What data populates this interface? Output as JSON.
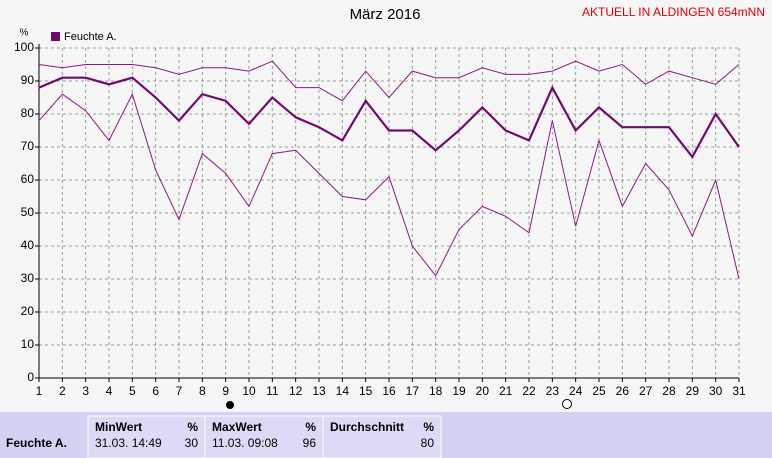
{
  "chart_data": {
    "type": "line",
    "title": "März 2016",
    "annotation": "AKTUELL IN ALDINGEN 654mNN",
    "y_label": "%",
    "x": [
      1,
      2,
      3,
      4,
      5,
      6,
      7,
      8,
      9,
      10,
      11,
      12,
      13,
      14,
      15,
      16,
      17,
      18,
      19,
      20,
      21,
      22,
      23,
      24,
      25,
      26,
      27,
      28,
      29,
      30,
      31
    ],
    "xlim": [
      1,
      31
    ],
    "ylim": [
      0,
      100
    ],
    "yticks": [
      0,
      10,
      20,
      30,
      40,
      50,
      60,
      70,
      80,
      90,
      100
    ],
    "grid": true,
    "series": [
      {
        "color": "#8a1a84",
        "width": 1,
        "values": [
          95,
          94,
          95,
          95,
          95,
          94,
          92,
          94,
          94,
          93,
          96,
          88,
          88,
          84,
          93,
          85,
          93,
          91,
          91,
          94,
          92,
          92,
          93,
          96,
          93,
          95,
          89,
          93,
          91,
          89,
          95
        ]
      },
      {
        "name": "Feuchte A.",
        "color": "#720a6c",
        "width": 2.2,
        "values": [
          88,
          91,
          91,
          89,
          91,
          85,
          78,
          86,
          84,
          77,
          85,
          79,
          76,
          72,
          84,
          75,
          75,
          69,
          75,
          82,
          75,
          72,
          88,
          75,
          82,
          76,
          76,
          76,
          67,
          80,
          70
        ]
      },
      {
        "color": "#8a1a84",
        "width": 1,
        "values": [
          78,
          86,
          81,
          72,
          86,
          63,
          48,
          68,
          62,
          52,
          68,
          69,
          62,
          55,
          54,
          61,
          40,
          31,
          45,
          52,
          49,
          44,
          78,
          46,
          72,
          52,
          65,
          57,
          43,
          60,
          30
        ]
      }
    ]
  },
  "summary": {
    "row_label": "Feuchte A.",
    "columns": [
      {
        "title": "MinWert",
        "unit": "%",
        "when": "31.03. 14:49",
        "value": 30
      },
      {
        "title": "MaxWert",
        "unit": "%",
        "when": "11.03. 09:08",
        "value": 96
      },
      {
        "title": "Durchschnitt",
        "unit": "%",
        "value": 80
      }
    ]
  }
}
